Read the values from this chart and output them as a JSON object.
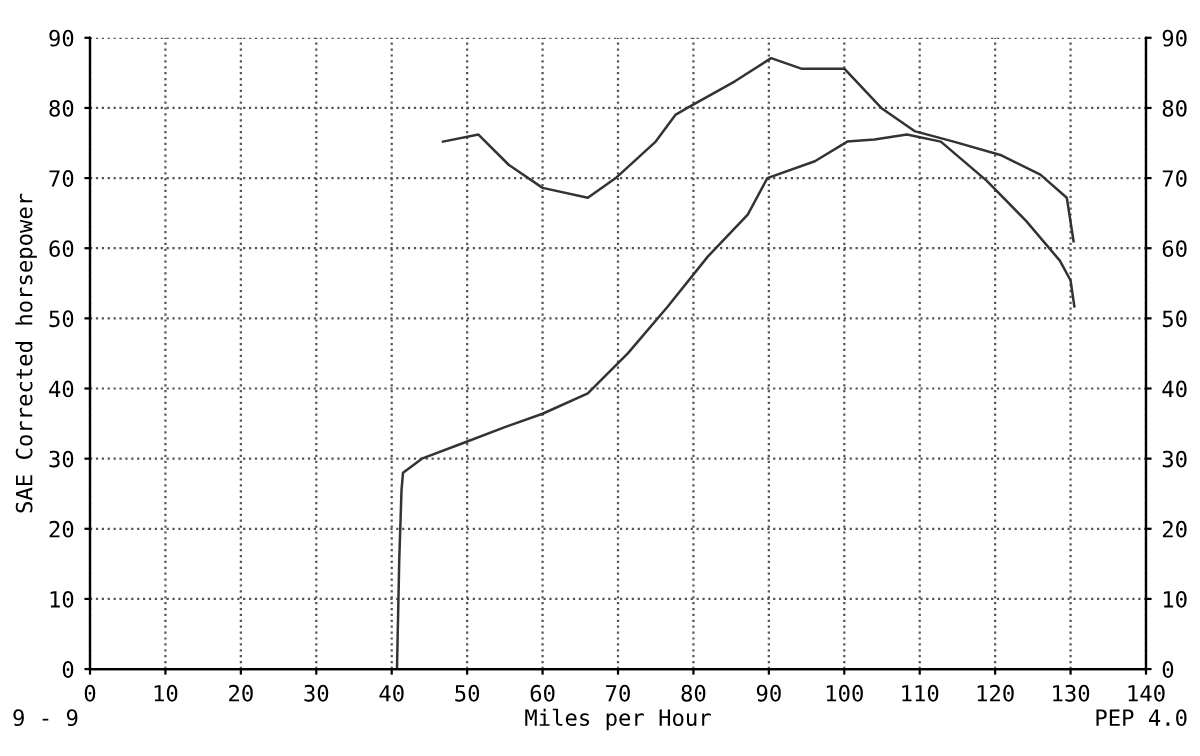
{
  "chart_data": {
    "type": "line",
    "xlabel": "Miles per Hour",
    "ylabel": "SAE Corrected horsepower",
    "xlim": [
      0,
      140
    ],
    "xticks": [
      0,
      10,
      20,
      30,
      40,
      50,
      60,
      70,
      80,
      90,
      100,
      110,
      120,
      130,
      140
    ],
    "ylim": [
      0,
      90
    ],
    "yticks": [
      0,
      10,
      20,
      30,
      40,
      50,
      60,
      70,
      80,
      90
    ],
    "y2lim": [
      0,
      90
    ],
    "y2ticks": [
      0,
      10,
      20,
      30,
      40,
      50,
      60,
      70,
      80,
      90
    ],
    "grid": true,
    "line_style": "solid",
    "marker": "none",
    "series": [
      {
        "color": "#333333",
        "x": [
          40.7,
          41.0,
          41.3,
          41.5,
          44,
          49.4,
          55,
          60,
          66,
          71.3,
          76.6,
          81.9,
          87.2,
          89.8,
          96.1,
          100.4,
          104,
          108.3,
          112.8,
          118.9,
          124.1,
          128.6,
          130,
          130.5
        ],
        "values": [
          0,
          15.6,
          25.5,
          28,
          30,
          32.2,
          34.5,
          36.4,
          39.3,
          45,
          51.7,
          58.8,
          64.8,
          70,
          72.4,
          75.2,
          75.5,
          76.2,
          75.2,
          69.6,
          63.9,
          58.2,
          55.4,
          51.7
        ]
      },
      {
        "color": "#333333",
        "x": [
          46.8,
          51.5,
          55.5,
          60,
          66,
          69.7,
          75,
          77.6,
          79.2,
          85.5,
          90.3,
          94.3,
          100,
          104.9,
          109.3,
          114.5,
          120.7,
          126,
          129.5,
          130.4
        ],
        "values": [
          75.2,
          76.2,
          71.9,
          68.6,
          67.2,
          70,
          75.2,
          79,
          80,
          83.8,
          87.1,
          85.6,
          85.6,
          80,
          76.7,
          75.2,
          73.3,
          70.5,
          67.2,
          61
        ]
      }
    ],
    "annotations": [
      "9 - 9",
      "PEP 4.0"
    ]
  }
}
